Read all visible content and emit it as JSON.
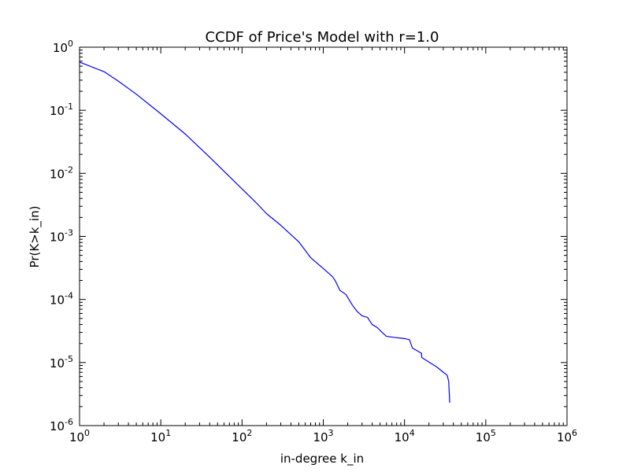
{
  "chart_data": {
    "type": "line",
    "title": "CCDF of Price's Model with r=1.0",
    "xlabel": "in-degree k_in",
    "ylabel": "Pr(K>k_in)",
    "xscale": "log",
    "yscale": "log",
    "xlim": [
      1,
      1000000
    ],
    "ylim": [
      1e-06,
      1
    ],
    "grid": false,
    "x_ticks": [
      {
        "base": "10",
        "exp": "0",
        "value": 1
      },
      {
        "base": "10",
        "exp": "1",
        "value": 10
      },
      {
        "base": "10",
        "exp": "2",
        "value": 100
      },
      {
        "base": "10",
        "exp": "3",
        "value": 1000
      },
      {
        "base": "10",
        "exp": "4",
        "value": 10000
      },
      {
        "base": "10",
        "exp": "5",
        "value": 100000
      },
      {
        "base": "10",
        "exp": "6",
        "value": 1000000
      }
    ],
    "y_ticks": [
      {
        "base": "10",
        "exp": "0",
        "value": 1
      },
      {
        "base": "10",
        "exp": "-1",
        "value": 0.1
      },
      {
        "base": "10",
        "exp": "-2",
        "value": 0.01
      },
      {
        "base": "10",
        "exp": "-3",
        "value": 0.001
      },
      {
        "base": "10",
        "exp": "-4",
        "value": 0.0001
      },
      {
        "base": "10",
        "exp": "-5",
        "value": 1e-05
      },
      {
        "base": "10",
        "exp": "-6",
        "value": 1e-06
      }
    ],
    "series": [
      {
        "color": "#0000ff",
        "x": [
          1,
          2,
          3,
          5,
          10,
          20,
          40,
          80,
          150,
          200,
          300,
          500,
          700,
          1000,
          1300,
          1400,
          1600,
          1900,
          2300,
          2600,
          3000,
          3500,
          4000,
          4600,
          5300,
          6000,
          7500,
          10000,
          11500,
          12500,
          16200,
          16300,
          25000,
          30000,
          33500,
          35000,
          36000
        ],
        "y": [
          0.58,
          0.41,
          0.29,
          0.18,
          0.088,
          0.042,
          0.018,
          0.0075,
          0.0034,
          0.0023,
          0.0015,
          0.00082,
          0.00046,
          0.00031,
          0.00023,
          0.0002,
          0.00014,
          0.00012,
          8e-05,
          6.5e-05,
          5.5e-05,
          5.2e-05,
          4e-05,
          3.6e-05,
          3e-05,
          2.6e-05,
          2.5e-05,
          2.4e-05,
          2.3e-05,
          1.7e-05,
          1.4e-05,
          1.2e-05,
          8.5e-06,
          7e-06,
          6.3e-06,
          5e-06,
          2.3e-06
        ]
      }
    ]
  }
}
